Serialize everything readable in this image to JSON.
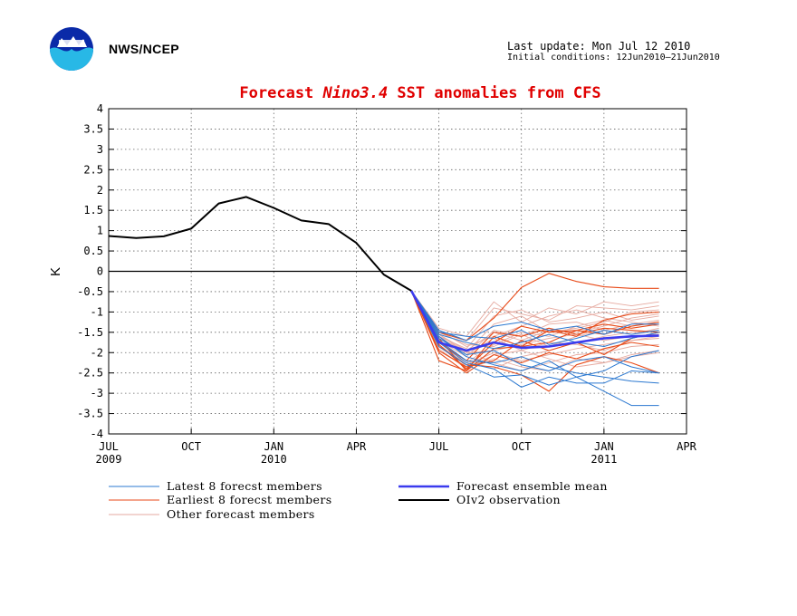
{
  "header": {
    "agency": "NWS/NCEP",
    "last_update": "Last update: Mon Jul 12 2010",
    "initial_conditions": "Initial conditions: 12Jun2010–21Jun2010"
  },
  "colors": {
    "title": "#e00000",
    "latest": "#2b78d0",
    "earliest": "#e84a18",
    "other": "#e6aaa0",
    "mean": "#3b3bee",
    "obs": "#000000"
  },
  "chart_data": {
    "type": "line",
    "title_parts": [
      "Forecast ",
      "Nino3.4",
      " SST anomalies from CFS"
    ],
    "ylabel": "K",
    "ylim": [
      -4,
      4
    ],
    "yticks": [
      4,
      3.5,
      3,
      2.5,
      2,
      1.5,
      1,
      0.5,
      0,
      -0.5,
      -1,
      -1.5,
      -2,
      -2.5,
      -3,
      -3.5,
      -4
    ],
    "ytick_labels": [
      "4",
      "3.5",
      "3",
      "2.5",
      "2",
      "1.5",
      "1",
      "0.5",
      "0",
      "-0.5",
      "-1",
      "-1.5",
      "-2",
      "-2.5",
      "-3",
      "-3.5",
      "-4"
    ],
    "xlim": [
      0,
      21
    ],
    "xticks": [
      0,
      3,
      6,
      9,
      12,
      15,
      18,
      21
    ],
    "xtick_labels": [
      [
        "JUL",
        "2009"
      ],
      [
        "OCT",
        ""
      ],
      [
        "JAN",
        "2010"
      ],
      [
        "APR",
        ""
      ],
      [
        "JUL",
        ""
      ],
      [
        "OCT",
        ""
      ],
      [
        "JAN",
        "2011"
      ],
      [
        "APR",
        ""
      ]
    ],
    "grid": true,
    "observation": {
      "name": "OIv2 observation",
      "x": [
        0,
        1,
        2,
        3,
        4,
        5,
        6,
        7,
        8,
        9,
        10,
        11
      ],
      "y": [
        0.87,
        0.82,
        0.86,
        1.05,
        1.67,
        1.83,
        1.56,
        1.25,
        1.16,
        0.7,
        -0.08,
        -0.48
      ]
    },
    "ensemble_mean": {
      "name": "Forecast ensemble mean",
      "x": [
        11,
        12,
        13,
        14,
        15,
        16,
        17,
        18,
        19,
        20
      ],
      "y": [
        -0.48,
        -1.75,
        -1.95,
        -1.75,
        -1.88,
        -1.85,
        -1.75,
        -1.65,
        -1.6,
        -1.58
      ]
    },
    "latest_members": [
      [
        -0.48,
        -1.6,
        -2.1,
        -2.3,
        -2.45,
        -2.2,
        -2.6,
        -2.45,
        -2.1,
        -1.95
      ],
      [
        -0.48,
        -1.75,
        -2.25,
        -2.4,
        -2.85,
        -2.6,
        -2.75,
        -2.75,
        -2.45,
        -2.5
      ],
      [
        -0.48,
        -1.55,
        -1.75,
        -1.9,
        -1.75,
        -1.55,
        -1.75,
        -1.85,
        -1.65,
        -1.5
      ],
      [
        -0.48,
        -1.85,
        -2.3,
        -2.6,
        -2.55,
        -2.8,
        -2.6,
        -2.95,
        -3.3,
        -3.3
      ],
      [
        -0.48,
        -1.45,
        -1.7,
        -1.35,
        -1.25,
        -1.45,
        -1.35,
        -1.55,
        -1.3,
        -1.3
      ],
      [
        -0.48,
        -1.65,
        -2.05,
        -1.95,
        -2.3,
        -2.45,
        -2.2,
        -2.1,
        -2.35,
        -2.5
      ],
      [
        -0.48,
        -1.5,
        -1.6,
        -1.65,
        -1.45,
        -1.8,
        -1.65,
        -1.45,
        -1.55,
        -1.45
      ],
      [
        -0.48,
        -1.7,
        -2.2,
        -2.25,
        -2.1,
        -2.35,
        -2.5,
        -2.6,
        -2.7,
        -2.75
      ]
    ],
    "earliest_members": [
      [
        -0.48,
        -1.5,
        -1.7,
        -1.15,
        -0.4,
        -0.05,
        -0.25,
        -0.38,
        -0.42,
        -0.42
      ],
      [
        -0.48,
        -1.8,
        -2.4,
        -1.75,
        -1.35,
        -1.5,
        -1.45,
        -1.3,
        -1.4,
        -1.3
      ],
      [
        -0.48,
        -1.65,
        -2.45,
        -1.9,
        -1.85,
        -1.75,
        -1.45,
        -1.55,
        -1.35,
        -1.25
      ],
      [
        -0.48,
        -2.0,
        -2.5,
        -2.05,
        -2.25,
        -2.0,
        -2.15,
        -1.9,
        -1.75,
        -1.85
      ],
      [
        -0.48,
        -1.75,
        -2.2,
        -1.5,
        -1.6,
        -1.4,
        -1.55,
        -1.4,
        -1.45,
        -1.5
      ],
      [
        -0.48,
        -1.85,
        -2.3,
        -2.35,
        -2.55,
        -2.95,
        -2.3,
        -2.1,
        -2.25,
        -2.5
      ],
      [
        -0.48,
        -2.2,
        -2.45,
        -1.6,
        -1.85,
        -1.45,
        -1.6,
        -1.2,
        -1.05,
        -1.0
      ],
      [
        -0.48,
        -1.95,
        -2.35,
        -2.2,
        -1.7,
        -1.95,
        -1.75,
        -2.05,
        -1.65,
        -1.5
      ]
    ],
    "other_members": [
      [
        -0.48,
        -1.4,
        -1.6,
        -0.75,
        -1.25,
        -0.9,
        -1.05,
        -0.75,
        -0.85,
        -0.75
      ],
      [
        -0.48,
        -1.6,
        -1.9,
        -1.1,
        -0.95,
        -1.25,
        -1.15,
        -1.0,
        -1.2,
        -1.1
      ],
      [
        -0.48,
        -1.7,
        -2.1,
        -1.45,
        -1.6,
        -1.3,
        -1.25,
        -1.45,
        -1.3,
        -1.2
      ],
      [
        -0.48,
        -1.5,
        -1.8,
        -1.85,
        -1.55,
        -1.85,
        -1.6,
        -1.45,
        -1.55,
        -1.4
      ],
      [
        -0.48,
        -1.8,
        -2.3,
        -2.0,
        -2.2,
        -2.05,
        -1.9,
        -1.8,
        -1.7,
        -1.6
      ],
      [
        -0.48,
        -1.55,
        -1.95,
        -2.25,
        -2.45,
        -2.25,
        -2.05,
        -2.0,
        -1.85,
        -1.8
      ],
      [
        -0.48,
        -1.65,
        -2.0,
        -1.3,
        -1.1,
        -1.5,
        -1.4,
        -1.25,
        -1.0,
        -0.95
      ],
      [
        -0.48,
        -1.9,
        -2.4,
        -2.05,
        -1.95,
        -2.15,
        -2.35,
        -2.25,
        -2.05,
        -1.95
      ],
      [
        -0.48,
        -1.45,
        -1.85,
        -1.6,
        -1.35,
        -1.1,
        -0.95,
        -1.15,
        -1.25,
        -1.35
      ],
      [
        -0.48,
        -1.75,
        -2.2,
        -2.4,
        -2.1,
        -1.95,
        -1.75,
        -1.6,
        -1.5,
        -1.45
      ],
      [
        -0.48,
        -1.6,
        -2.05,
        -1.65,
        -1.95,
        -1.75,
        -1.8,
        -1.95,
        -1.7,
        -1.65
      ],
      [
        -0.48,
        -1.85,
        -2.25,
        -1.8,
        -1.5,
        -1.6,
        -1.35,
        -1.2,
        -1.35,
        -1.25
      ],
      [
        -0.48,
        -1.5,
        -1.7,
        -0.9,
        -1.05,
        -1.2,
        -0.85,
        -0.9,
        -0.95,
        -0.85
      ],
      [
        -0.48,
        -1.7,
        -2.35,
        -2.15,
        -2.35,
        -2.45,
        -2.15,
        -2.25,
        -2.1,
        -2.0
      ],
      [
        -0.48,
        -1.55,
        -2.0,
        -1.95,
        -1.8,
        -1.65,
        -1.55,
        -1.7,
        -1.6,
        -1.55
      ],
      [
        -0.48,
        -1.65,
        -1.95,
        -1.5,
        -1.7,
        -1.45,
        -1.5,
        -1.35,
        -1.15,
        -1.05
      ]
    ],
    "legend": [
      {
        "label": "Latest 8 forecst members",
        "key": "latest"
      },
      {
        "label": "Earliest 8 forecst members",
        "key": "earliest"
      },
      {
        "label": "Other forecast members",
        "key": "other"
      },
      {
        "label": "Forecast ensemble mean",
        "key": "mean"
      },
      {
        "label": "OIv2 observation",
        "key": "obs"
      }
    ]
  }
}
